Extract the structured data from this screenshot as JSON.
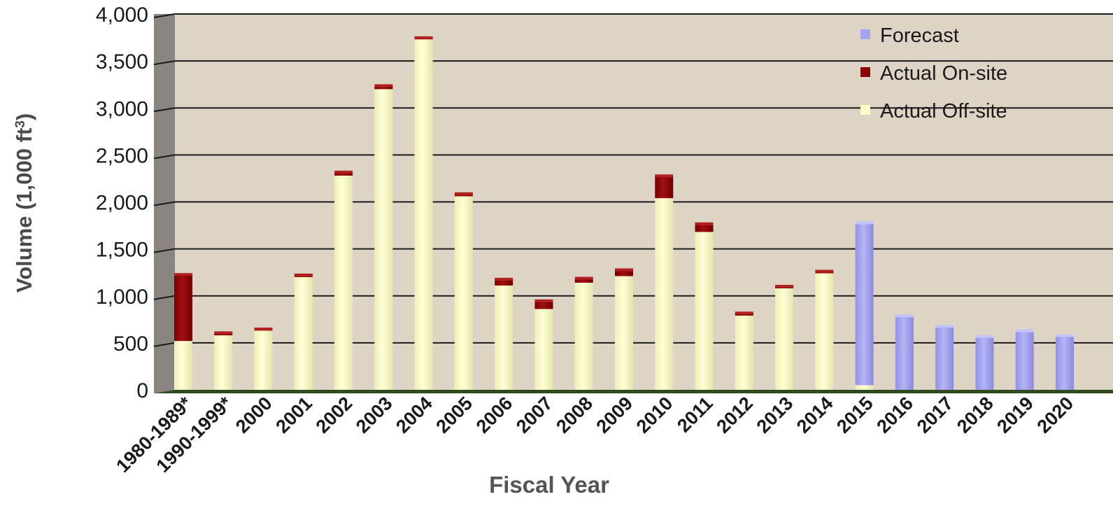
{
  "chart_data": {
    "type": "bar",
    "stacked": true,
    "xlabel": "Fiscal Year",
    "ylabel": "Volume (1,000 ft",
    "ylabel_superscript": "3",
    "ylabel_suffix": ")",
    "ylim": [
      0,
      4000
    ],
    "yticks": [
      0,
      500,
      1000,
      1500,
      2000,
      2500,
      3000,
      3500,
      4000
    ],
    "ytick_labels": [
      "0",
      "500",
      "1,000",
      "1,500",
      "2,000",
      "2,500",
      "3,000",
      "3,500",
      "4,000"
    ],
    "grid": true,
    "legend_position": "top-right",
    "categories": [
      "1980-1989*",
      "1990-1999*",
      "2000",
      "2001",
      "2002",
      "2003",
      "2004",
      "2005",
      "2006",
      "2007",
      "2008",
      "2009",
      "2010",
      "2011",
      "2012",
      "2013",
      "2014",
      "2015",
      "2016",
      "2017",
      "2018",
      "2019",
      "2020"
    ],
    "series": [
      {
        "name": "Actual Off-site",
        "color": "#FFFFCC",
        "values": [
          520,
          580,
          630,
          1200,
          2280,
          3200,
          3730,
          2060,
          1110,
          860,
          1140,
          1210,
          2040,
          1680,
          790,
          1080,
          1240,
          50,
          0,
          0,
          0,
          0,
          0
        ]
      },
      {
        "name": "Actual On-site",
        "color": "#8B0000",
        "values": [
          700,
          20,
          10,
          15,
          30,
          30,
          10,
          20,
          60,
          80,
          40,
          60,
          230,
          80,
          20,
          15,
          15,
          0,
          0,
          0,
          0,
          0,
          0
        ]
      },
      {
        "name": "Forecast",
        "color": "#A3A3F0",
        "values": [
          0,
          0,
          0,
          0,
          0,
          0,
          0,
          0,
          0,
          0,
          0,
          0,
          0,
          0,
          0,
          0,
          0,
          1720,
          780,
          670,
          560,
          620,
          570
        ]
      }
    ],
    "legend_order": [
      "Forecast",
      "Actual On-site",
      "Actual Off-site"
    ],
    "colors": {
      "plot_background": "#DDD4C6",
      "wall": "#8A8580",
      "floor": "#2E4A1E",
      "gridline": "#1A1A1A",
      "axis_title": "#4A4A4A",
      "tick_label": "#1A1A1A"
    }
  }
}
